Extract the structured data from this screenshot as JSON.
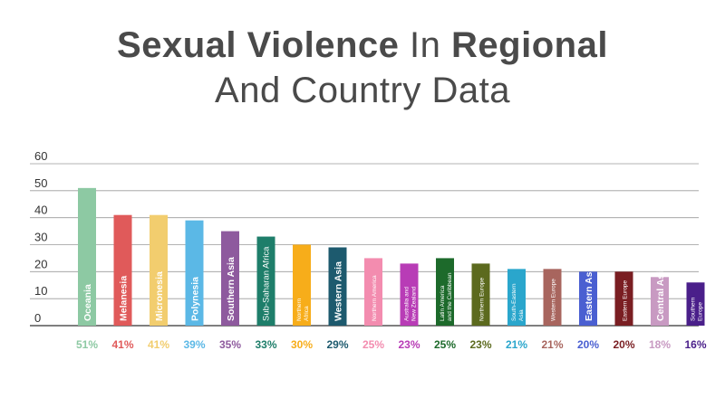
{
  "title": {
    "part1": "Sexual Violence",
    "part2": "In",
    "part3": "Regional",
    "line2": "And Country Data"
  },
  "chart_data": {
    "type": "bar",
    "title": "Sexual Violence In Regional And Country Data",
    "xlabel": "",
    "ylabel": "",
    "ylim": [
      0,
      60
    ],
    "yticks": [
      0,
      10,
      20,
      30,
      40,
      50,
      60
    ],
    "grid": true,
    "categories": [
      "Oceania",
      "Melanesia",
      "Micronesia",
      "Polynesia",
      "Southern Asia",
      "Sub-Saharan Africa",
      "Northern Africa",
      "Western Asia",
      "Northern America",
      "Australia and New Zealand",
      "Latin America and the Caribbean",
      "Northern Europe",
      "South-Eastern Asia",
      "Western Europe",
      "Eastern Asia",
      "Eastern Europe",
      "Central Asia",
      "Southern Europe"
    ],
    "values": [
      51,
      41,
      41,
      39,
      35,
      33,
      30,
      29,
      25,
      23,
      25,
      23,
      21,
      21,
      20,
      20,
      18,
      16
    ],
    "value_labels": [
      "51%",
      "41%",
      "41%",
      "39%",
      "35%",
      "33%",
      "30%",
      "29%",
      "25%",
      "23%",
      "25%",
      "23%",
      "21%",
      "21%",
      "20%",
      "20%",
      "18%",
      "16%"
    ],
    "colors": [
      "#8dc9a3",
      "#e05a5a",
      "#f2cd6e",
      "#5bb8e6",
      "#8e5a9e",
      "#1e7e6a",
      "#f7ad1a",
      "#1d5a6e",
      "#f38caf",
      "#b83cb6",
      "#1d6a2b",
      "#5c6a1e",
      "#2aa6cc",
      "#a8655e",
      "#4a5fd1",
      "#7a1e22",
      "#c89ac2",
      "#4a1f8a"
    ]
  }
}
